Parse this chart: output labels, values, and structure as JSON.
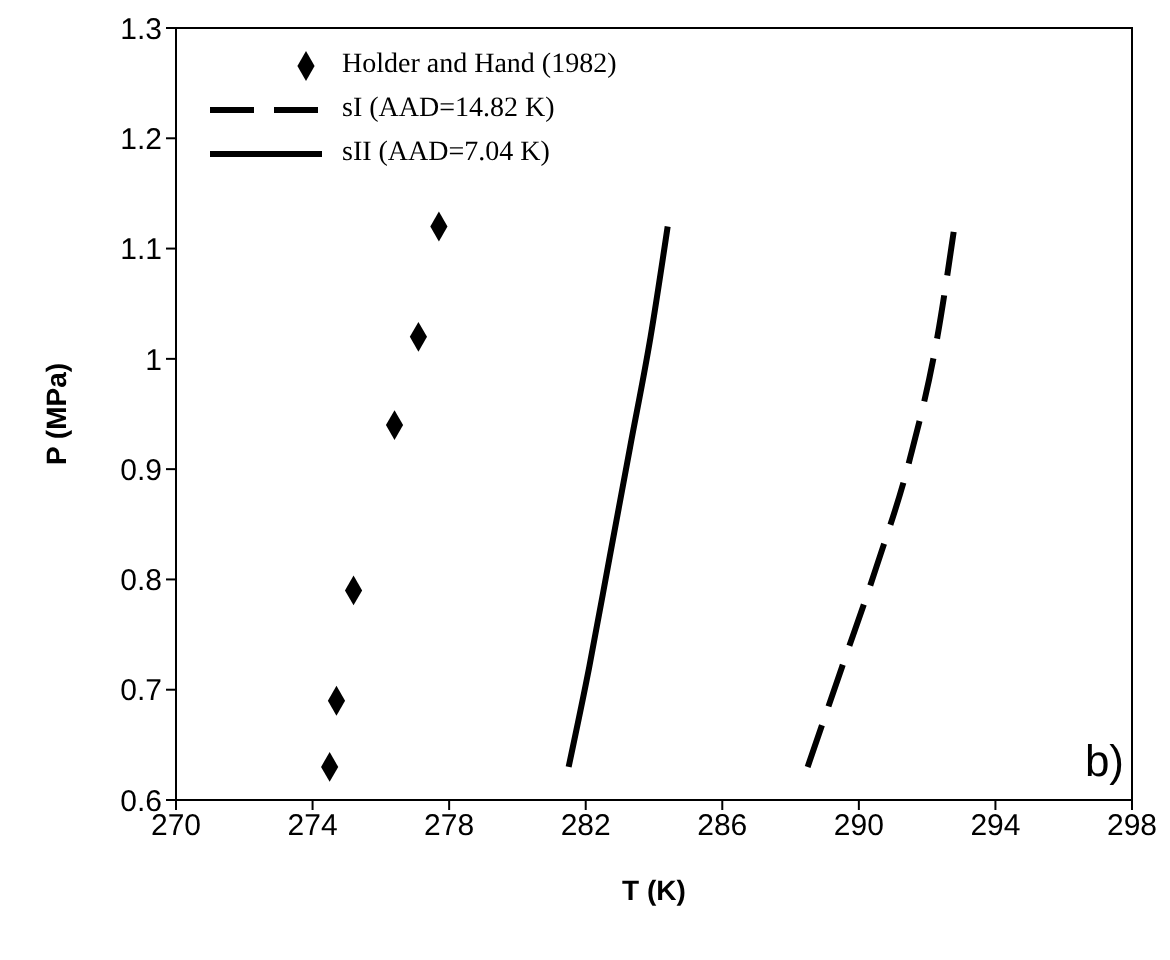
{
  "chart_data": {
    "type": "line",
    "xlabel": "T (K)",
    "ylabel": "P (MPa)",
    "xlim": [
      270,
      298
    ],
    "xticks": [
      270,
      274,
      278,
      282,
      286,
      290,
      294,
      298
    ],
    "ylim": [
      0.6,
      1.3
    ],
    "yticks": [
      0.6,
      0.7,
      0.8,
      0.9,
      1,
      1.1,
      1.2,
      1.3
    ],
    "grid": false,
    "legend": "top left",
    "annotations": [
      "b)"
    ],
    "series": [
      {
        "name": "Holder and Hand (1982)",
        "type": "scatter",
        "marker": "diamond",
        "color": "#000000",
        "x": [
          274.5,
          274.7,
          275.2,
          276.4,
          277.1,
          277.7
        ],
        "values": [
          0.63,
          0.69,
          0.79,
          0.94,
          1.02,
          1.12
        ]
      },
      {
        "name": "sI (AAD=14.82 K)",
        "line_style": "dashed",
        "color": "#000000",
        "x": [
          288.5,
          289.5,
          290.5,
          291.5,
          292.3,
          292.8
        ],
        "values": [
          0.63,
          0.72,
          0.81,
          0.91,
          1.02,
          1.12
        ]
      },
      {
        "name": "sII (AAD=7.04 K)",
        "line_style": "solid",
        "color": "#000000",
        "x": [
          281.5,
          282.1,
          282.7,
          283.3,
          283.9,
          284.4
        ],
        "values": [
          0.63,
          0.72,
          0.82,
          0.92,
          1.02,
          1.12
        ]
      }
    ]
  }
}
